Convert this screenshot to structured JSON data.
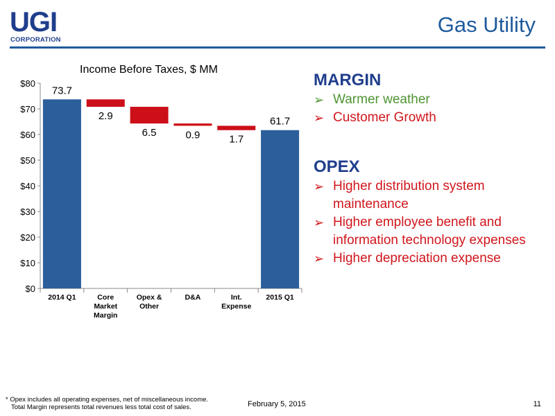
{
  "logo": {
    "name": "UGI",
    "subtitle": "CORPORATION"
  },
  "slide_title": "Gas Utility",
  "chart_data": {
    "type": "bar",
    "subtype": "waterfall",
    "title": "Income Before Taxes, $ MM",
    "categories": [
      "2014 Q1",
      "Core Market Margin",
      "Opex & Other",
      "D&A",
      "Int. Expense",
      "2015 Q1"
    ],
    "category_label_lines": [
      [
        "2014 Q1"
      ],
      [
        "Core",
        "Market",
        "Margin"
      ],
      [
        "Opex &",
        "Other"
      ],
      [
        "D&A"
      ],
      [
        "Int.",
        "Expense"
      ],
      [
        "2015 Q1"
      ]
    ],
    "values": [
      73.7,
      -2.9,
      -6.5,
      -0.9,
      -1.7,
      61.7
    ],
    "value_labels": [
      "73.7",
      "2.9",
      "6.5",
      "0.9",
      "1.7",
      "61.7"
    ],
    "bar_kind": [
      "total",
      "delta",
      "delta",
      "delta",
      "delta",
      "total"
    ],
    "ylim": [
      0,
      80
    ],
    "yticks": [
      0,
      10,
      20,
      30,
      40,
      50,
      60,
      70,
      80
    ],
    "ytick_labels": [
      "$0",
      "$10",
      "$20",
      "$30",
      "$40",
      "$50",
      "$60",
      "$70",
      "$80"
    ],
    "colors": {
      "total": "#2b5e9a",
      "delta": "#cc0f19"
    },
    "grid": false,
    "legend": "none"
  },
  "margin_section": {
    "heading": "MARGIN",
    "items": [
      {
        "text": "Warmer weather",
        "color": "#d0161c"
      },
      {
        "text": "Customer Growth",
        "color": "#4e9432"
      }
    ]
  },
  "opex_section": {
    "heading": "OPEX",
    "items": [
      {
        "text": "Higher distribution system maintenance"
      },
      {
        "text": "Higher employee benefit and information technology expenses"
      },
      {
        "text": "Higher depreciation expense"
      }
    ]
  },
  "bullet_glyph": "➢",
  "footnote": {
    "line1": "* Opex includes all operating expenses, net of miscellaneous income.",
    "line2": "Total Margin represents total revenues less total cost of sales."
  },
  "date": "February 5, 2015",
  "page_number": "11"
}
